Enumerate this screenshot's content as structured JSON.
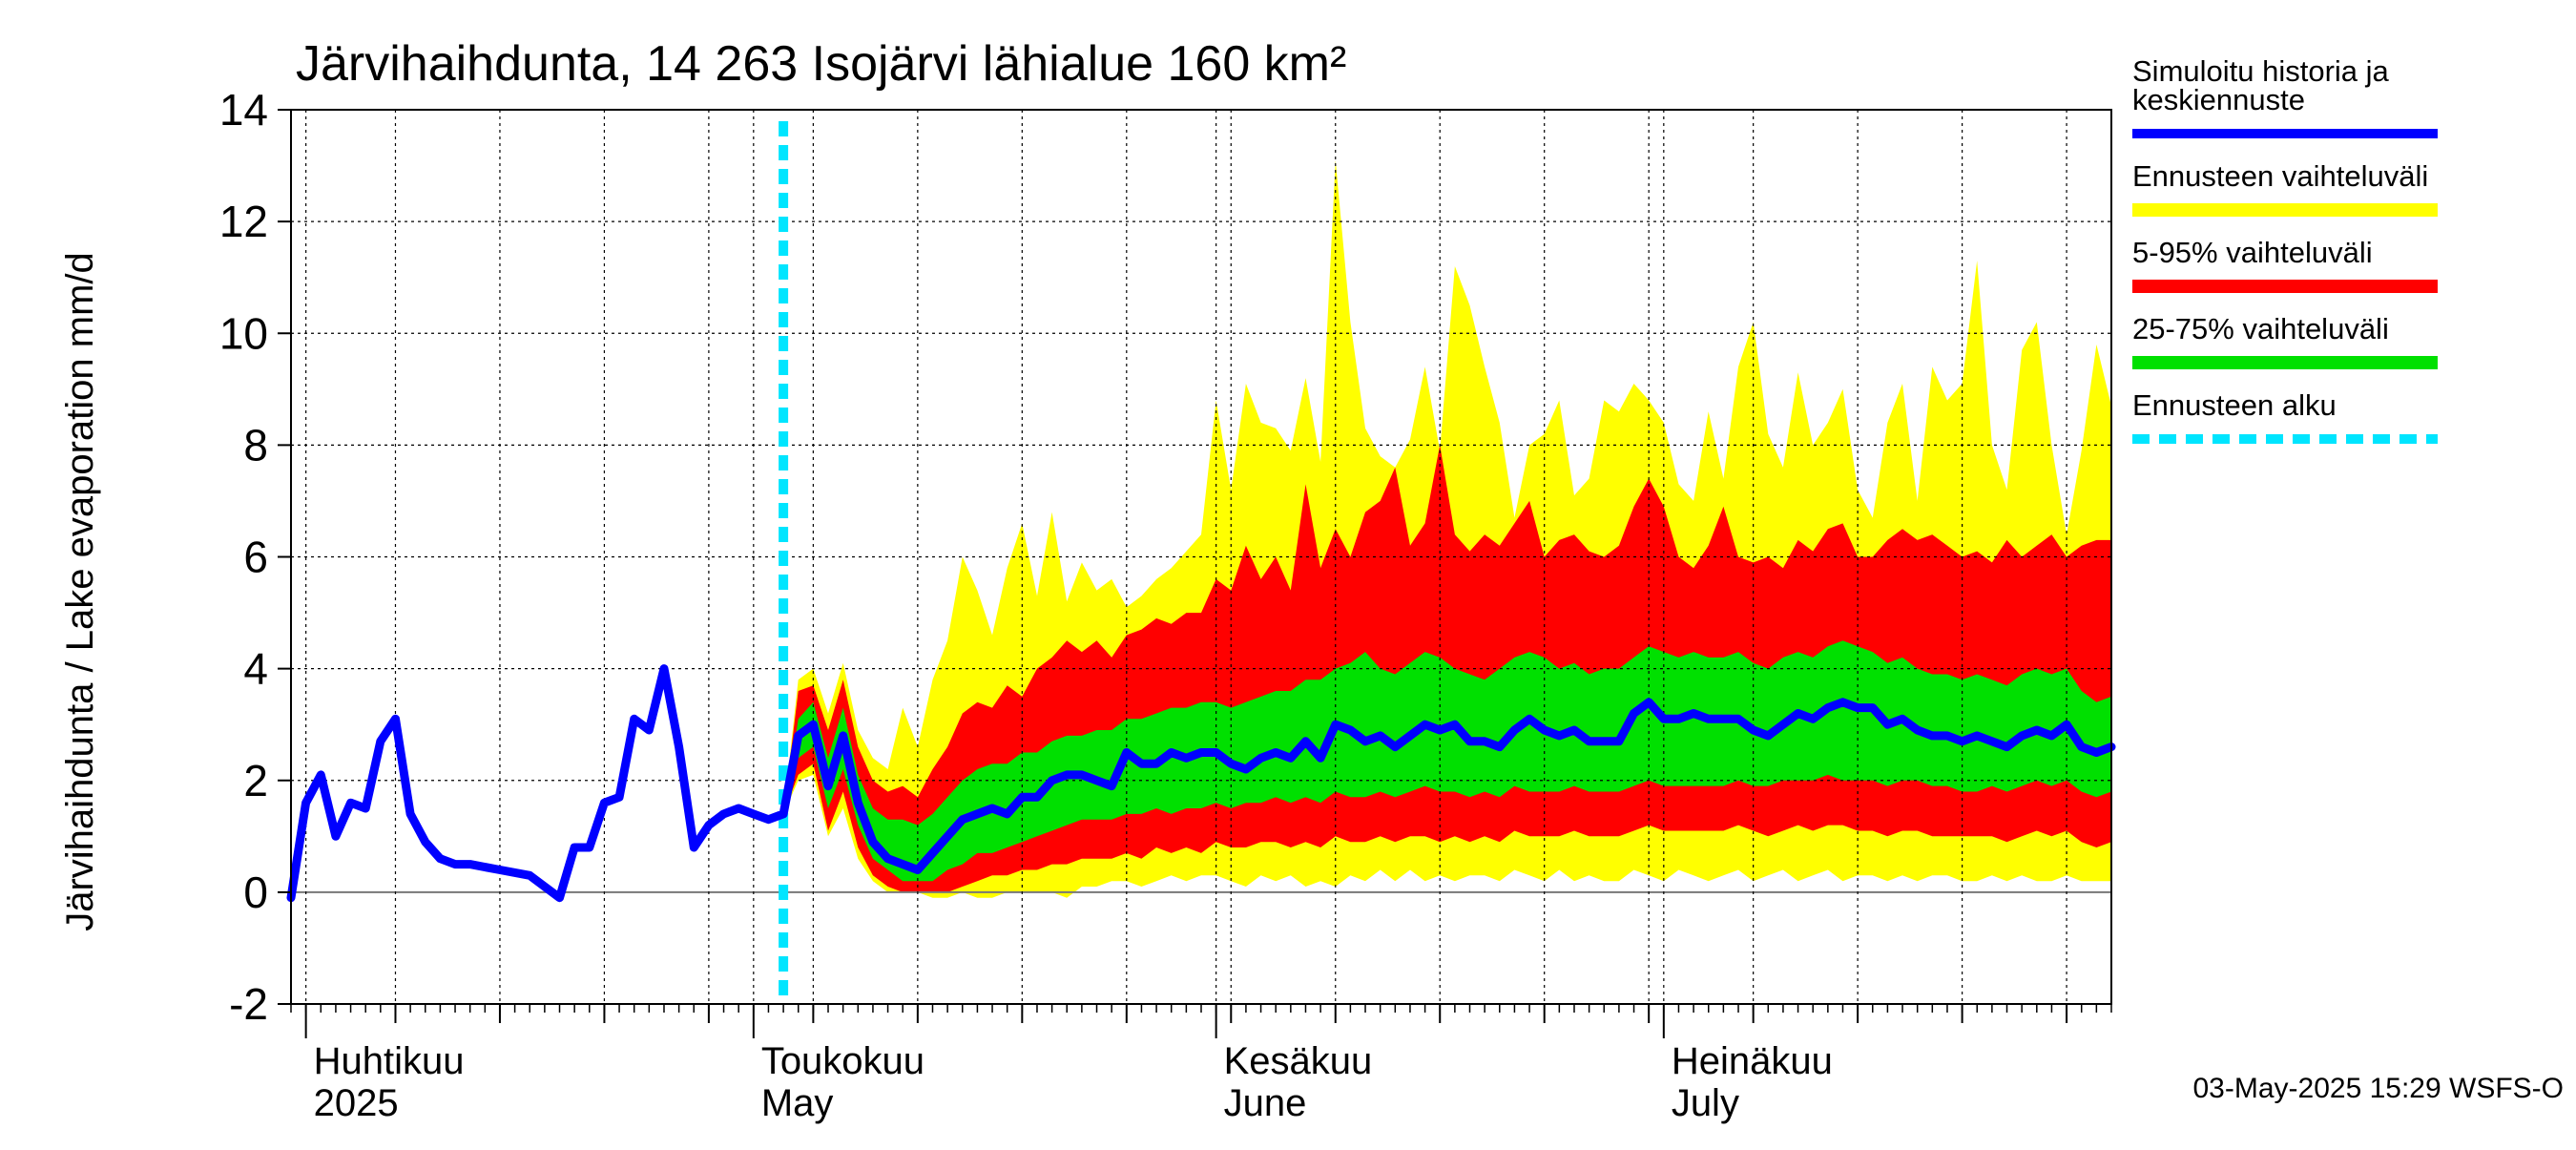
{
  "chart_data": {
    "type": "area",
    "title": "Järvihaihdunta, 14 263 Isojärvi lähialue 160 km²",
    "ylabel": "Järvihaihdunta / Lake evaporation   mm/d",
    "xlabel": "",
    "ylim": [
      -2,
      14
    ],
    "yticks": [
      "-2",
      "0",
      "2",
      "4",
      "6",
      "8",
      "10",
      "12",
      "14"
    ],
    "xlim": [
      "2025-03-31",
      "2025-07-31"
    ],
    "month_labels": [
      {
        "fi": "Huhtikuu",
        "en": "2025",
        "date": "2025-04-01"
      },
      {
        "fi": "Toukokuu",
        "en": "May",
        "date": "2025-05-01"
      },
      {
        "fi": "Kesäkuu",
        "en": "June",
        "date": "2025-06-01"
      },
      {
        "fi": "Heinäkuu",
        "en": "July",
        "date": "2025-07-01"
      }
    ],
    "grid": true,
    "forecast_start": "2025-05-03",
    "footer": "03-May-2025 15:29 WSFS-O",
    "legend_position": "right",
    "legend": [
      {
        "label": "Simuloitu historia ja keskiennuste",
        "lines": [
          "Simuloitu historia ja",
          "keskiennuste"
        ],
        "color": "#0000ff",
        "style": "line"
      },
      {
        "label": "Ennusteen vaihteluväli",
        "lines": [
          "Ennusteen vaihteluväli"
        ],
        "color": "#ffff00",
        "style": "band"
      },
      {
        "label": "5-95% vaihteluväli",
        "lines": [
          "5-95% vaihteluväli"
        ],
        "color": "#ff0000",
        "style": "band"
      },
      {
        "label": "25-75% vaihteluväli",
        "lines": [
          "25-75% vaihteluväli"
        ],
        "color": "#00e000",
        "style": "band"
      },
      {
        "label": "Ennusteen alku",
        "lines": [
          "Ennusteen alku"
        ],
        "color": "#00e5ff",
        "style": "dashed"
      }
    ],
    "history": {
      "x": [
        "2025-03-31",
        "2025-04-01",
        "2025-04-02",
        "2025-04-03",
        "2025-04-04",
        "2025-04-05",
        "2025-04-06",
        "2025-04-07",
        "2025-04-08",
        "2025-04-09",
        "2025-04-10",
        "2025-04-11",
        "2025-04-12",
        "2025-04-14",
        "2025-04-16",
        "2025-04-18",
        "2025-04-19",
        "2025-04-20",
        "2025-04-21",
        "2025-04-22",
        "2025-04-23",
        "2025-04-24",
        "2025-04-25",
        "2025-04-26",
        "2025-04-27",
        "2025-04-28",
        "2025-04-29",
        "2025-04-30",
        "2025-05-01",
        "2025-05-02",
        "2025-05-03"
      ],
      "y": [
        -0.1,
        1.6,
        2.1,
        1.0,
        1.6,
        1.5,
        2.7,
        3.1,
        1.4,
        0.9,
        0.6,
        0.5,
        0.5,
        0.4,
        0.3,
        -0.1,
        0.8,
        0.8,
        1.6,
        1.7,
        3.1,
        2.9,
        4.0,
        2.6,
        0.8,
        1.2,
        1.4,
        1.5,
        1.4,
        1.3,
        1.4
      ]
    },
    "forecast": {
      "x": [
        "2025-05-03",
        "2025-05-04",
        "2025-05-05",
        "2025-05-06",
        "2025-05-07",
        "2025-05-08",
        "2025-05-09",
        "2025-05-10",
        "2025-05-11",
        "2025-05-12",
        "2025-05-13",
        "2025-05-14",
        "2025-05-15",
        "2025-05-16",
        "2025-05-17",
        "2025-05-18",
        "2025-05-19",
        "2025-05-20",
        "2025-05-21",
        "2025-05-22",
        "2025-05-23",
        "2025-05-24",
        "2025-05-25",
        "2025-05-26",
        "2025-05-27",
        "2025-05-28",
        "2025-05-29",
        "2025-05-30",
        "2025-05-31",
        "2025-06-01",
        "2025-06-02",
        "2025-06-03",
        "2025-06-04",
        "2025-06-05",
        "2025-06-06",
        "2025-06-07",
        "2025-06-08",
        "2025-06-09",
        "2025-06-10",
        "2025-06-11",
        "2025-06-12",
        "2025-06-13",
        "2025-06-14",
        "2025-06-15",
        "2025-06-16",
        "2025-06-17",
        "2025-06-18",
        "2025-06-19",
        "2025-06-20",
        "2025-06-21",
        "2025-06-22",
        "2025-06-23",
        "2025-06-24",
        "2025-06-25",
        "2025-06-26",
        "2025-06-27",
        "2025-06-28",
        "2025-06-29",
        "2025-06-30",
        "2025-07-01",
        "2025-07-02",
        "2025-07-03",
        "2025-07-04",
        "2025-07-05",
        "2025-07-06",
        "2025-07-07",
        "2025-07-08",
        "2025-07-09",
        "2025-07-10",
        "2025-07-11",
        "2025-07-12",
        "2025-07-13",
        "2025-07-14",
        "2025-07-15",
        "2025-07-16",
        "2025-07-17",
        "2025-07-18",
        "2025-07-19",
        "2025-07-20",
        "2025-07-21",
        "2025-07-22",
        "2025-07-23",
        "2025-07-24",
        "2025-07-25",
        "2025-07-26",
        "2025-07-27",
        "2025-07-28",
        "2025-07-29",
        "2025-07-30",
        "2025-07-31"
      ],
      "mean": [
        1.4,
        2.8,
        3.0,
        1.9,
        2.8,
        1.6,
        0.9,
        0.6,
        0.5,
        0.4,
        0.7,
        1.0,
        1.3,
        1.4,
        1.5,
        1.4,
        1.7,
        1.7,
        2.0,
        2.1,
        2.1,
        2.0,
        1.9,
        2.5,
        2.3,
        2.3,
        2.5,
        2.4,
        2.5,
        2.5,
        2.3,
        2.2,
        2.4,
        2.5,
        2.4,
        2.7,
        2.4,
        3.0,
        2.9,
        2.7,
        2.8,
        2.6,
        2.8,
        3.0,
        2.9,
        3.0,
        2.7,
        2.7,
        2.6,
        2.9,
        3.1,
        2.9,
        2.8,
        2.9,
        2.7,
        2.7,
        2.7,
        3.2,
        3.4,
        3.1,
        3.1,
        3.2,
        3.1,
        3.1,
        3.1,
        2.9,
        2.8,
        3.0,
        3.2,
        3.1,
        3.3,
        3.4,
        3.3,
        3.3,
        3.0,
        3.1,
        2.9,
        2.8,
        2.8,
        2.7,
        2.8,
        2.7,
        2.6,
        2.8,
        2.9,
        2.8,
        3.0,
        2.6,
        2.5,
        2.6
      ],
      "p25": [
        1.4,
        2.4,
        2.6,
        1.5,
        2.2,
        1.2,
        0.6,
        0.4,
        0.2,
        0.2,
        0.2,
        0.4,
        0.5,
        0.7,
        0.7,
        0.8,
        0.9,
        1.0,
        1.1,
        1.2,
        1.3,
        1.3,
        1.3,
        1.4,
        1.4,
        1.5,
        1.4,
        1.5,
        1.5,
        1.6,
        1.5,
        1.6,
        1.6,
        1.7,
        1.6,
        1.7,
        1.6,
        1.8,
        1.7,
        1.7,
        1.8,
        1.7,
        1.8,
        1.9,
        1.8,
        1.8,
        1.7,
        1.8,
        1.7,
        1.9,
        1.8,
        1.8,
        1.8,
        1.9,
        1.8,
        1.8,
        1.8,
        1.9,
        2.0,
        1.9,
        1.9,
        1.9,
        1.9,
        1.9,
        2.0,
        1.9,
        1.9,
        2.0,
        2.0,
        2.0,
        2.1,
        2.0,
        2.0,
        2.0,
        1.9,
        2.0,
        2.0,
        1.9,
        1.9,
        1.8,
        1.8,
        1.9,
        1.8,
        1.9,
        2.0,
        1.9,
        2.0,
        1.8,
        1.7,
        1.8
      ],
      "p75": [
        1.4,
        3.1,
        3.4,
        2.4,
        3.3,
        2.1,
        1.5,
        1.3,
        1.3,
        1.2,
        1.4,
        1.7,
        2.0,
        2.2,
        2.3,
        2.3,
        2.5,
        2.5,
        2.7,
        2.8,
        2.8,
        2.9,
        2.9,
        3.1,
        3.1,
        3.2,
        3.3,
        3.3,
        3.4,
        3.4,
        3.3,
        3.4,
        3.5,
        3.6,
        3.6,
        3.8,
        3.8,
        4.0,
        4.1,
        4.3,
        4.0,
        3.9,
        4.1,
        4.3,
        4.2,
        4.0,
        3.9,
        3.8,
        4.0,
        4.2,
        4.3,
        4.2,
        4.0,
        4.1,
        3.9,
        4.0,
        4.0,
        4.2,
        4.4,
        4.3,
        4.2,
        4.3,
        4.2,
        4.2,
        4.3,
        4.1,
        4.0,
        4.2,
        4.3,
        4.2,
        4.4,
        4.5,
        4.4,
        4.3,
        4.1,
        4.2,
        4.0,
        3.9,
        3.9,
        3.8,
        3.9,
        3.8,
        3.7,
        3.9,
        4.0,
        3.9,
        4.0,
        3.6,
        3.4,
        3.5
      ],
      "p05": [
        1.4,
        2.1,
        2.3,
        1.1,
        1.8,
        0.8,
        0.3,
        0.1,
        0.0,
        0.0,
        0.0,
        0.0,
        0.1,
        0.2,
        0.3,
        0.3,
        0.4,
        0.4,
        0.5,
        0.5,
        0.6,
        0.6,
        0.6,
        0.7,
        0.6,
        0.8,
        0.7,
        0.8,
        0.7,
        0.9,
        0.8,
        0.8,
        0.9,
        0.9,
        0.8,
        0.9,
        0.8,
        1.0,
        0.9,
        0.9,
        1.0,
        0.9,
        1.0,
        1.0,
        0.9,
        1.0,
        0.9,
        1.0,
        0.9,
        1.1,
        1.0,
        1.0,
        1.0,
        1.1,
        1.0,
        1.0,
        1.0,
        1.1,
        1.2,
        1.1,
        1.1,
        1.1,
        1.1,
        1.1,
        1.2,
        1.1,
        1.0,
        1.1,
        1.2,
        1.1,
        1.2,
        1.2,
        1.1,
        1.1,
        1.0,
        1.1,
        1.1,
        1.0,
        1.0,
        1.0,
        1.0,
        1.0,
        0.9,
        1.0,
        1.1,
        1.0,
        1.1,
        0.9,
        0.8,
        0.9
      ],
      "p95": [
        1.4,
        3.6,
        3.7,
        2.9,
        3.8,
        2.6,
        2.0,
        1.8,
        1.9,
        1.7,
        2.2,
        2.6,
        3.2,
        3.4,
        3.3,
        3.7,
        3.5,
        4.0,
        4.2,
        4.5,
        4.3,
        4.5,
        4.2,
        4.6,
        4.7,
        4.9,
        4.8,
        5.0,
        5.0,
        5.6,
        5.4,
        6.2,
        5.6,
        6.0,
        5.4,
        7.3,
        5.8,
        6.5,
        6.0,
        6.8,
        7.0,
        7.6,
        6.2,
        6.6,
        8.0,
        6.4,
        6.1,
        6.4,
        6.2,
        6.6,
        7.0,
        6.0,
        6.3,
        6.4,
        6.1,
        6.0,
        6.2,
        6.9,
        7.4,
        6.9,
        6.0,
        5.8,
        6.2,
        6.9,
        6.0,
        5.9,
        6.0,
        5.8,
        6.3,
        6.1,
        6.5,
        6.6,
        6.0,
        6.0,
        6.3,
        6.5,
        6.3,
        6.4,
        6.2,
        6.0,
        6.1,
        5.9,
        6.3,
        6.0,
        6.2,
        6.4,
        6.0,
        6.2,
        6.3,
        6.3
      ],
      "min": [
        1.4,
        2.0,
        2.1,
        1.0,
        1.5,
        0.6,
        0.2,
        0.0,
        0.0,
        0.0,
        -0.1,
        -0.1,
        0.0,
        -0.1,
        -0.1,
        0.0,
        0.0,
        0.0,
        0.0,
        -0.1,
        0.1,
        0.1,
        0.2,
        0.2,
        0.1,
        0.2,
        0.3,
        0.2,
        0.3,
        0.3,
        0.2,
        0.1,
        0.3,
        0.2,
        0.3,
        0.1,
        0.2,
        0.1,
        0.3,
        0.2,
        0.4,
        0.2,
        0.4,
        0.2,
        0.3,
        0.2,
        0.3,
        0.3,
        0.2,
        0.4,
        0.3,
        0.2,
        0.4,
        0.2,
        0.3,
        0.2,
        0.2,
        0.4,
        0.3,
        0.2,
        0.4,
        0.3,
        0.2,
        0.3,
        0.4,
        0.2,
        0.3,
        0.4,
        0.2,
        0.3,
        0.4,
        0.2,
        0.3,
        0.3,
        0.2,
        0.3,
        0.2,
        0.3,
        0.3,
        0.2,
        0.2,
        0.3,
        0.2,
        0.3,
        0.2,
        0.2,
        0.3,
        0.2,
        0.2,
        0.2
      ],
      "max": [
        1.4,
        3.8,
        4.0,
        3.2,
        4.1,
        2.9,
        2.4,
        2.2,
        3.3,
        2.6,
        3.8,
        4.5,
        6.0,
        5.4,
        4.6,
        5.8,
        6.6,
        5.3,
        6.8,
        5.2,
        5.9,
        5.4,
        5.6,
        5.1,
        5.3,
        5.6,
        5.8,
        6.1,
        6.4,
        8.8,
        7.2,
        9.1,
        8.4,
        8.3,
        7.9,
        9.2,
        7.7,
        13.1,
        10.2,
        8.3,
        7.8,
        7.6,
        8.1,
        9.4,
        7.9,
        11.2,
        10.5,
        9.4,
        8.4,
        6.7,
        8.0,
        8.2,
        8.8,
        7.1,
        7.4,
        8.8,
        8.6,
        9.1,
        8.8,
        8.4,
        7.3,
        7.0,
        8.6,
        7.4,
        9.4,
        10.2,
        8.2,
        7.6,
        9.3,
        8.0,
        8.4,
        9.0,
        7.2,
        6.7,
        8.4,
        9.1,
        7.0,
        9.4,
        8.8,
        9.1,
        11.3,
        8.0,
        7.2,
        9.7,
        10.2,
        8.0,
        6.4,
        7.9,
        9.8,
        8.7
      ]
    }
  }
}
